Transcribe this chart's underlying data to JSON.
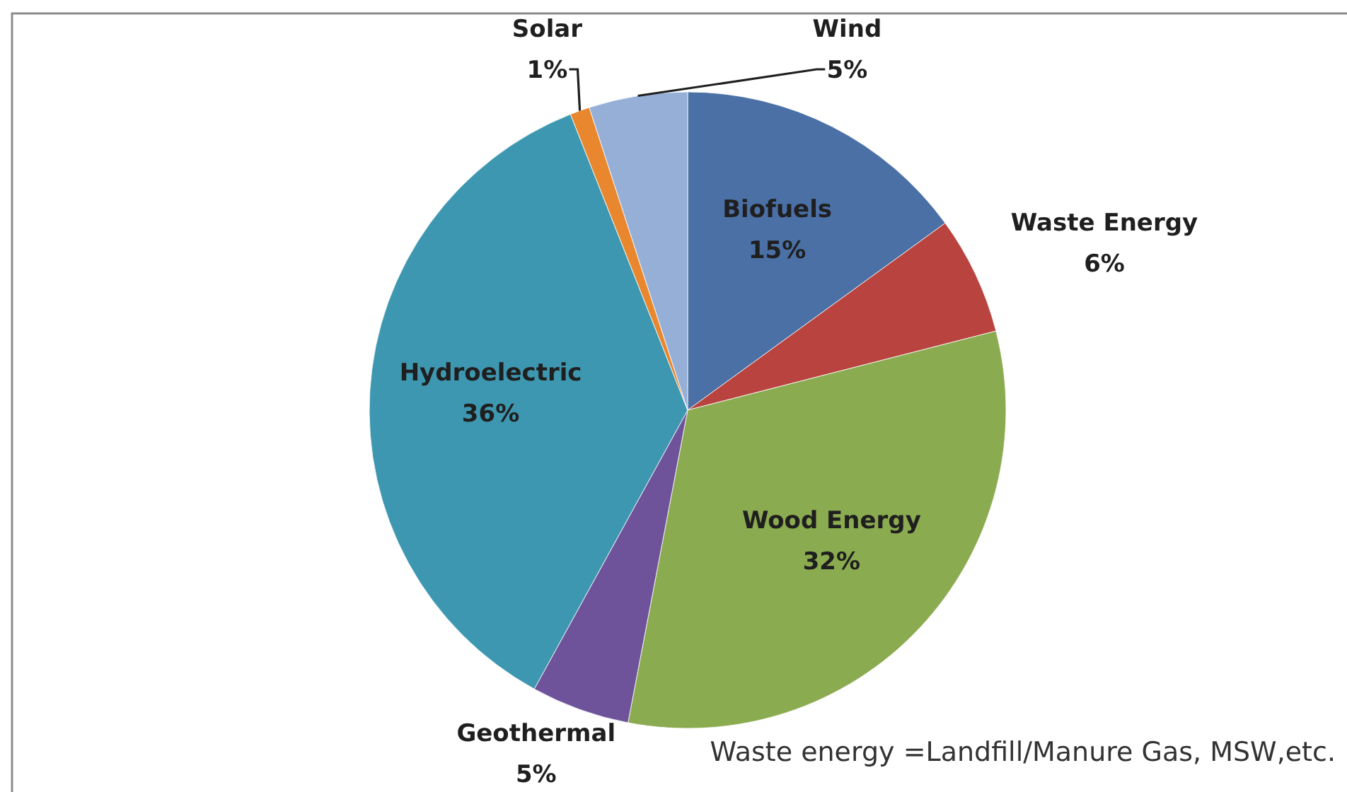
{
  "chart_data": {
    "type": "pie",
    "categories": [
      "Biofuels",
      "Waste Energy",
      "Wood Energy",
      "Geothermal",
      "Hydroelectric",
      "Solar",
      "Wind"
    ],
    "values": [
      15,
      6,
      32,
      5,
      36,
      1,
      5
    ],
    "colors": [
      "#4a70a6",
      "#b8433f",
      "#8bab50",
      "#6f539a",
      "#3e97b0",
      "#e8872e",
      "#95afd7"
    ],
    "value_labels": [
      "15%",
      "6%",
      "32%",
      "5%",
      "36%",
      "1%",
      "5%"
    ],
    "annotations": [
      "Waste energy =Landfill/Manure Gas, MSW,etc."
    ]
  }
}
